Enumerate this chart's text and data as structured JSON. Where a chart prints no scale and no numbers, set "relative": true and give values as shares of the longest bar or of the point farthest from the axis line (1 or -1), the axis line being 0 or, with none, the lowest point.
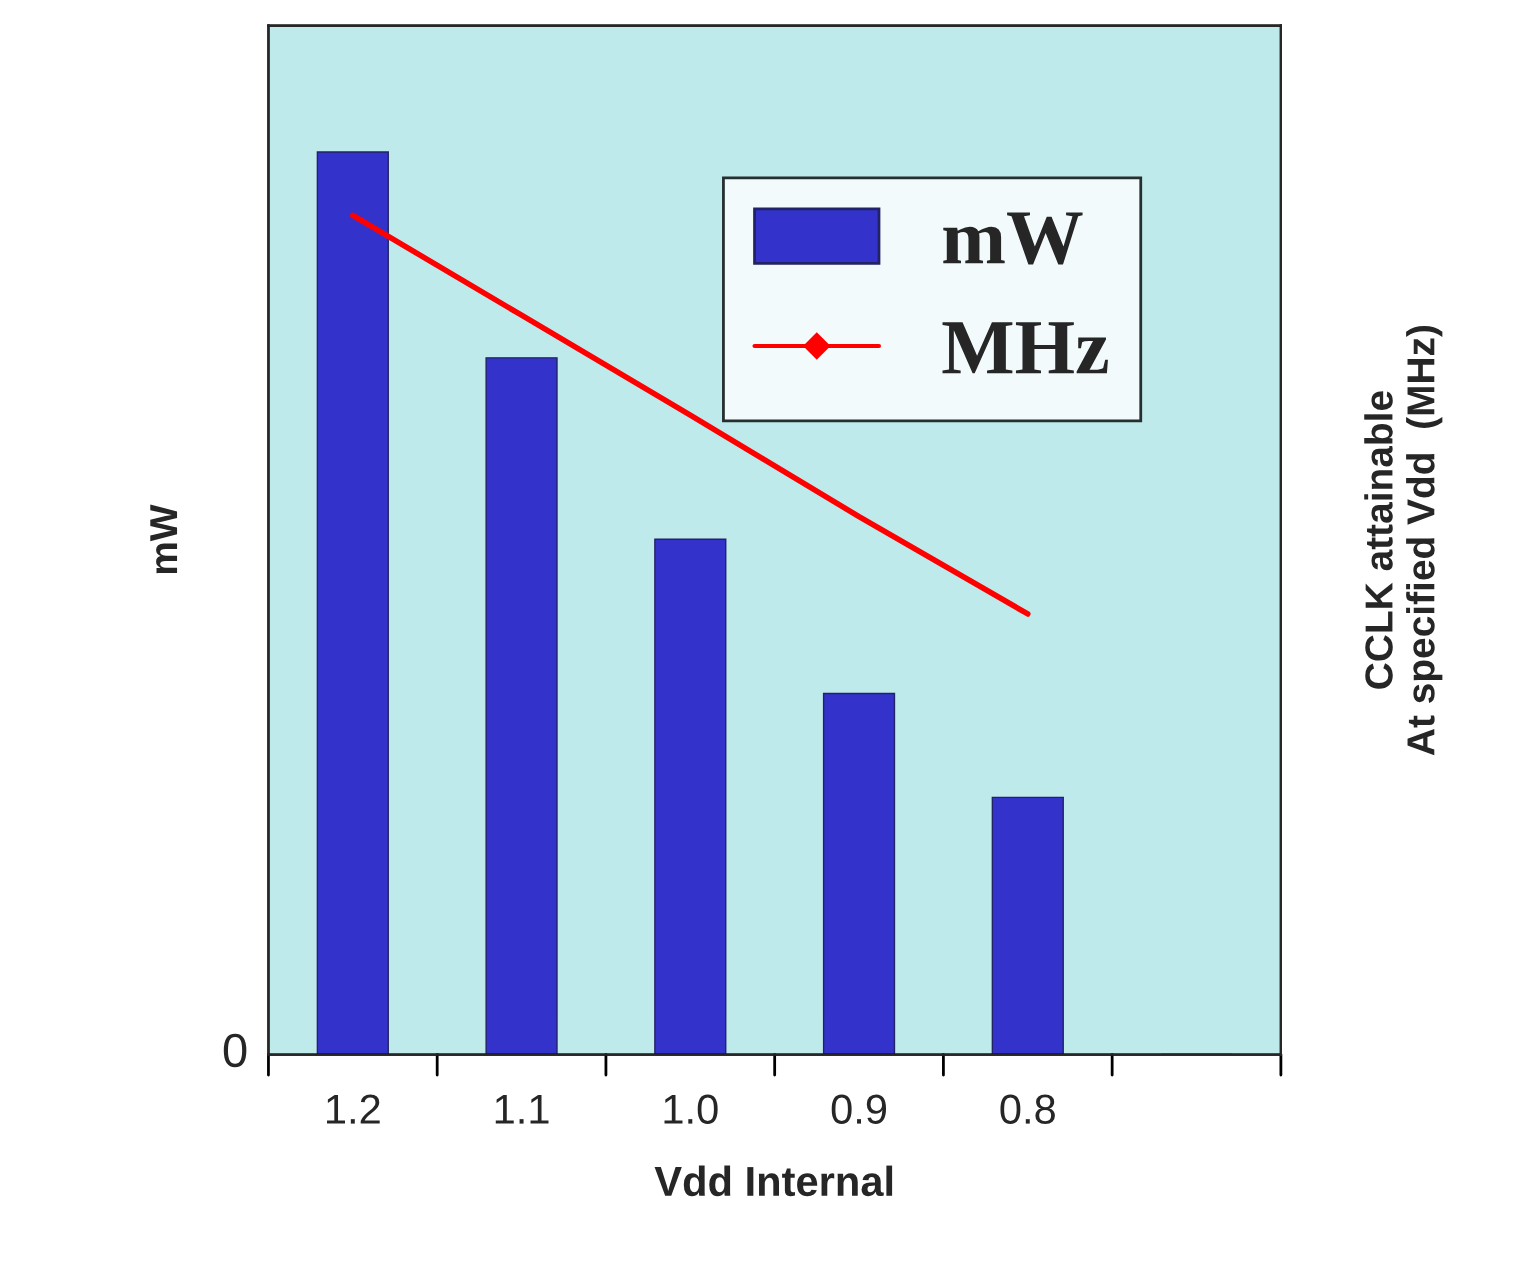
{
  "chart_data": {
    "type": "bar",
    "relative": true,
    "xlabel": "Vdd Internal",
    "ylabel": "mW",
    "y2label": "CCLK attainable\nAt specified Vdd  (MHz)",
    "categories": [
      "1.2",
      "1.1",
      "1.0",
      "0.9",
      "0.8",
      null
    ],
    "series": [
      {
        "name": "mW",
        "color": "#3333cc",
        "values": [
          1,
          0.772,
          0.571,
          0.4,
          0.285,
          null
        ]
      },
      {
        "name": "MHz",
        "type": "line",
        "axis": "y2",
        "color": "#ff0000",
        "marker": "none",
        "values": [
          1,
          0.881,
          0.762,
          0.641,
          0.525,
          null
        ]
      }
    ],
    "annotations": [
      "0"
    ],
    "legend": "top right",
    "grid": false
  }
}
